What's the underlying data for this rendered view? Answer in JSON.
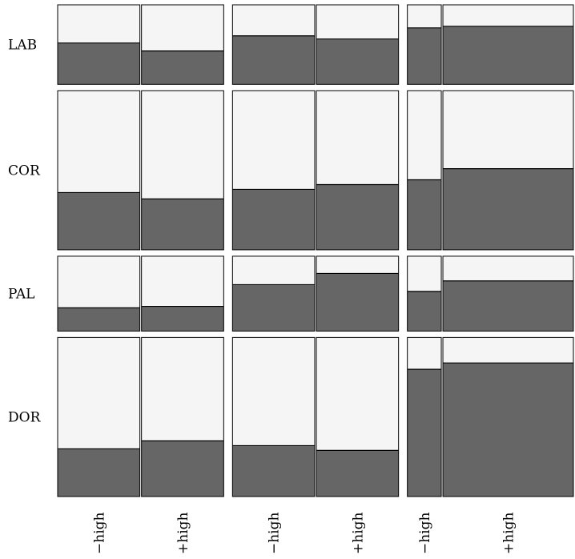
{
  "chart_data": {
    "type": "mosaic",
    "title": "",
    "colors": {
      "dark": "#666666",
      "light": "#f5f5f5",
      "stroke": "#000000"
    },
    "rows": [
      "LAB",
      "COR",
      "PAL",
      "DOR"
    ],
    "row_weights": [
      0.17,
      0.34,
      0.16,
      0.34
    ],
    "columns": [
      "−high",
      "+high",
      "−high",
      "+high",
      "−high",
      "+high"
    ],
    "column_groups": [
      {
        "columns": [
          0,
          1
        ],
        "weights": [
          1,
          1
        ]
      },
      {
        "columns": [
          2,
          3
        ],
        "weights": [
          1,
          1
        ]
      },
      {
        "columns": [
          4,
          5
        ],
        "weights": [
          0.26,
          1
        ]
      }
    ],
    "dark_fraction": [
      [
        0.52,
        0.42,
        0.61,
        0.57,
        0.71,
        0.73
      ],
      [
        0.36,
        0.32,
        0.38,
        0.41,
        0.44,
        0.51
      ],
      [
        0.31,
        0.33,
        0.62,
        0.77,
        0.53,
        0.67
      ],
      [
        0.3,
        0.35,
        0.32,
        0.29,
        0.8,
        0.84
      ]
    ]
  }
}
